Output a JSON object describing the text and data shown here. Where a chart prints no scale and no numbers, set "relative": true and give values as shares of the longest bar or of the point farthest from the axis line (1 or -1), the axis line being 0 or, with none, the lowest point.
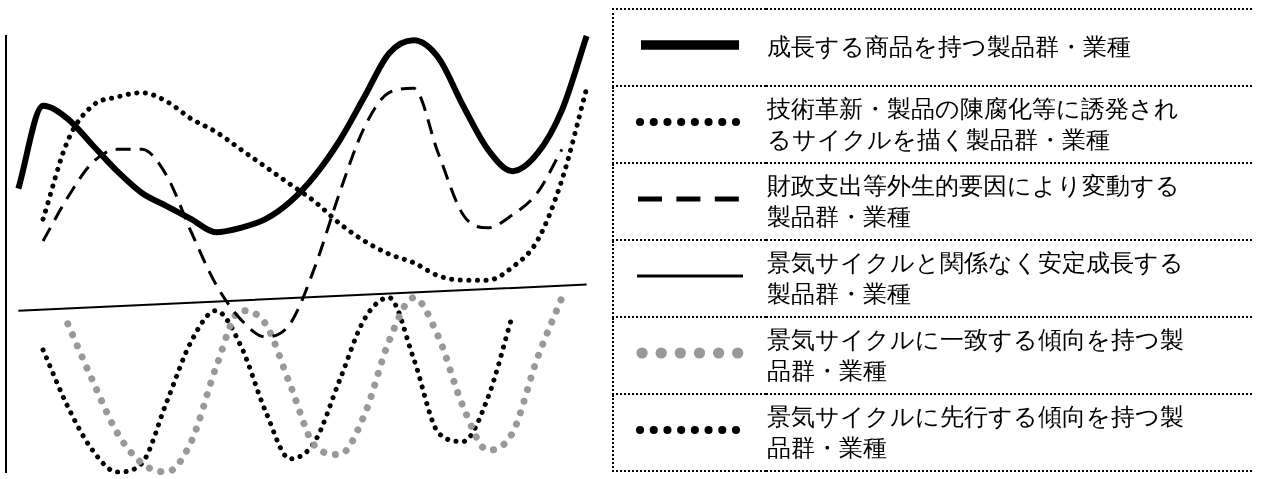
{
  "chart_data": {
    "type": "line",
    "relative": true,
    "legend": "right",
    "grid": false,
    "categories": [
      null,
      null,
      null,
      null,
      null,
      null,
      null,
      null,
      null,
      null,
      null,
      null,
      null,
      null,
      null,
      null,
      null,
      null,
      null,
      null,
      null,
      null,
      null,
      null
    ],
    "series": [
      {
        "name": "成長する商品を持つ製品群・業種",
        "color": "#000000",
        "line_style": "solid",
        "values": [
          0.65,
          0.84,
          0.81,
          0.75,
          0.69,
          0.64,
          0.61,
          0.58,
          0.55,
          0.56,
          0.58,
          0.62,
          0.68,
          0.76,
          0.86,
          0.96,
          0.99,
          0.95,
          0.84,
          0.74,
          0.69,
          0.73,
          0.83,
          1
        ]
      },
      {
        "name": "技術革新・製品の陳腐化等に誘発されるサイクルを描く製品群・業種",
        "color": "#000000",
        "line_style": "dotted",
        "values": [
          null,
          0.58,
          0.76,
          0.84,
          0.86,
          0.87,
          0.85,
          0.81,
          0.78,
          0.74,
          0.7,
          0.66,
          0.62,
          0.57,
          0.53,
          0.5,
          0.48,
          0.45,
          0.44,
          0.44,
          0.47,
          0.53,
          0.67,
          0.88
        ]
      },
      {
        "name": "財政支出等外生的要因により変動する製品群・業種",
        "color": "#000000",
        "line_style": "dashed",
        "values": [
          null,
          0.53,
          0.63,
          0.71,
          0.74,
          0.74,
          0.68,
          0.55,
          0.43,
          0.35,
          0.31,
          0.34,
          0.47,
          0.64,
          0.79,
          0.87,
          0.88,
          0.73,
          0.59,
          0.56,
          0.59,
          0.64,
          0.74,
          null
        ]
      },
      {
        "name": "景気サイクルと関係なく安定成長する製品群・業種",
        "color": "#000000",
        "line_style": "solid",
        "values": [
          0.37,
          null,
          null,
          null,
          null,
          null,
          null,
          null,
          null,
          null,
          null,
          null,
          null,
          null,
          null,
          null,
          null,
          null,
          null,
          null,
          null,
          null,
          null,
          0.43
        ]
      },
      {
        "name": "景気サイクルに一致する傾向を持つ製品群・業種",
        "color": "#999999",
        "line_style": "dotted",
        "values": [
          null,
          null,
          0.34,
          0.21,
          0.09,
          0.02,
          0.0,
          0.07,
          0.24,
          0.37,
          0.34,
          0.2,
          0.06,
          0.04,
          0.13,
          0.3,
          0.4,
          0.31,
          0.15,
          0.05,
          0.09,
          0.26,
          0.4,
          null
        ]
      },
      {
        "name": "景気サイクルに先行する傾向を持つ製品群・業種",
        "color": "#000000",
        "line_style": "dotted",
        "values": [
          null,
          0.28,
          0.15,
          0.05,
          0.0,
          0.02,
          0.16,
          0.3,
          0.37,
          0.29,
          0.14,
          0.03,
          0.07,
          0.21,
          0.35,
          0.4,
          0.26,
          0.09,
          0.07,
          0.17,
          0.36,
          null,
          null,
          null
        ]
      }
    ]
  }
}
